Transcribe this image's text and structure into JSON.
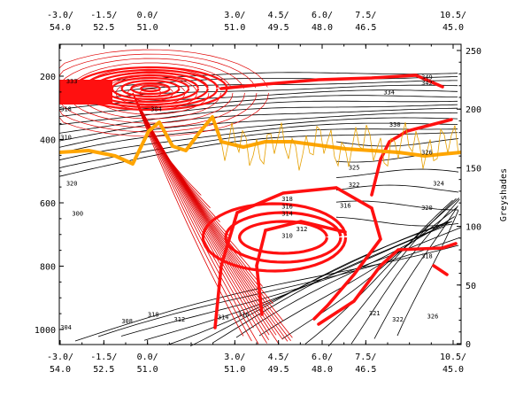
{
  "chart_data": {
    "type": "contour",
    "title": "",
    "xlabel": "",
    "ylabel_left": "",
    "ylabel_right": "Greyshades",
    "x_tick_labels": [
      {
        "lon": -3.0,
        "top": "-3.0/",
        "bottom": "54.0"
      },
      {
        "lon": -1.5,
        "top": "-1.5/",
        "bottom": "52.5"
      },
      {
        "lon": 0.0,
        "top": "0.0/",
        "bottom": "51.0"
      },
      {
        "lon": 3.0,
        "top": "3.0/",
        "bottom": "51.0"
      },
      {
        "lon": 4.5,
        "top": "4.5/",
        "bottom": "49.5"
      },
      {
        "lon": 6.0,
        "top": "6.0/",
        "bottom": "48.0"
      },
      {
        "lon": 7.5,
        "top": "7.5/",
        "bottom": "46.5"
      },
      {
        "lon": 10.5,
        "top": "10.5/",
        "bottom": "45.0"
      }
    ],
    "y_left": {
      "ticks": [
        200,
        400,
        600,
        800,
        1000
      ],
      "range": [
        100,
        1050
      ]
    },
    "y_right": {
      "ticks": [
        0,
        50,
        100,
        150,
        200,
        250
      ],
      "range": [
        0,
        260
      ]
    },
    "contour_labels": [
      {
        "text": "349",
        "lon": 9.6,
        "p": 210
      },
      {
        "text": "342",
        "lon": 9.6,
        "p": 228
      },
      {
        "text": "334",
        "lon": 8.3,
        "p": 258
      },
      {
        "text": "330",
        "lon": 8.5,
        "p": 360
      },
      {
        "text": "326",
        "lon": 9.6,
        "p": 448
      },
      {
        "text": "325",
        "lon": 7.1,
        "p": 495
      },
      {
        "text": "322",
        "lon": 7.1,
        "p": 550
      },
      {
        "text": "324",
        "lon": 10.0,
        "p": 545
      },
      {
        "text": "320",
        "lon": 9.6,
        "p": 622
      },
      {
        "text": "318",
        "lon": 4.8,
        "p": 595
      },
      {
        "text": "316",
        "lon": 4.8,
        "p": 618
      },
      {
        "text": "316",
        "lon": 6.8,
        "p": 615
      },
      {
        "text": "314",
        "lon": 4.8,
        "p": 640
      },
      {
        "text": "312",
        "lon": 5.3,
        "p": 690
      },
      {
        "text": "310",
        "lon": 4.8,
        "p": 710
      },
      {
        "text": "318",
        "lon": 9.6,
        "p": 775
      },
      {
        "text": "321",
        "lon": 7.8,
        "p": 955
      },
      {
        "text": "322",
        "lon": 8.6,
        "p": 975
      },
      {
        "text": "326",
        "lon": 9.8,
        "p": 965
      },
      {
        "text": "304",
        "lon": -2.8,
        "p": 1000
      },
      {
        "text": "308",
        "lon": -0.7,
        "p": 980
      },
      {
        "text": "310",
        "lon": 0.2,
        "p": 960
      },
      {
        "text": "312",
        "lon": 1.1,
        "p": 975
      },
      {
        "text": "314",
        "lon": 2.6,
        "p": 968
      },
      {
        "text": "316",
        "lon": 3.3,
        "p": 960
      },
      {
        "text": "320",
        "lon": -2.6,
        "p": 545
      },
      {
        "text": "300",
        "lon": -2.4,
        "p": 640
      },
      {
        "text": "318",
        "lon": -2.8,
        "p": 310
      },
      {
        "text": "310",
        "lon": -2.8,
        "p": 400
      },
      {
        "text": "304",
        "lon": 0.3,
        "p": 310
      },
      {
        "text": "333",
        "lon": -2.6,
        "p": 222
      }
    ]
  }
}
